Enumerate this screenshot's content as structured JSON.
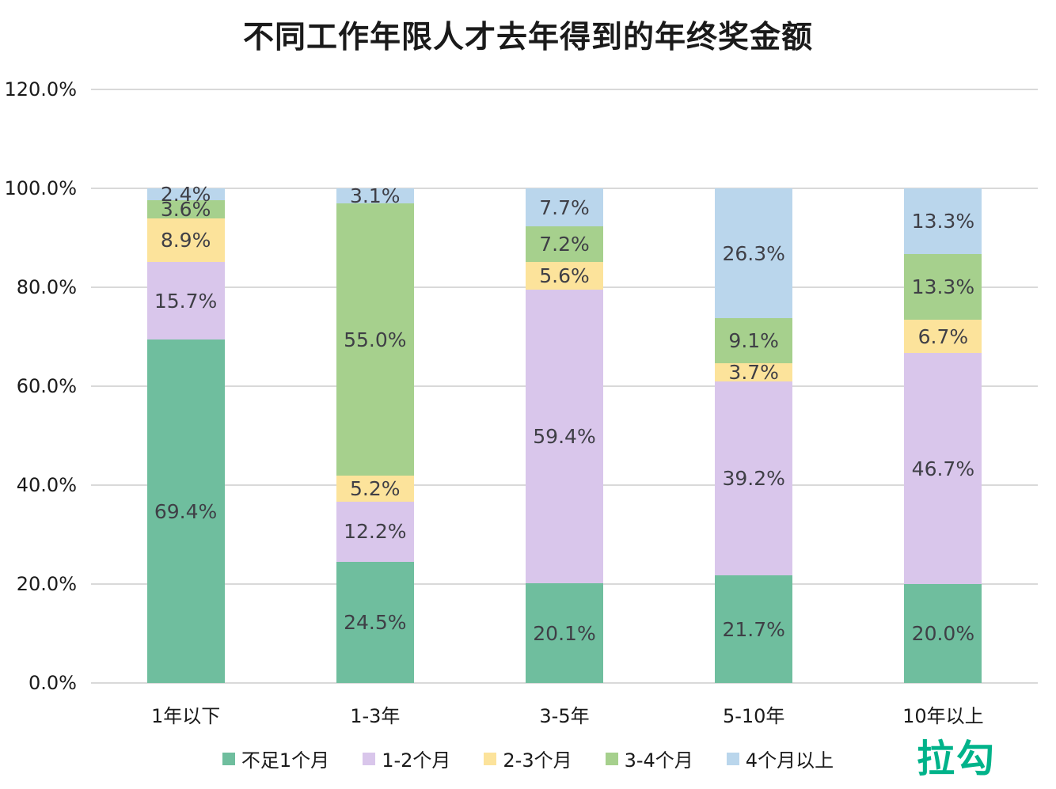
{
  "chart_data": {
    "type": "bar",
    "stacked": true,
    "title": "不同工作年限人才去年得到的年终奖金额",
    "categories": [
      "1年以下",
      "1-3年",
      "3-5年",
      "5-10年",
      "10年以上"
    ],
    "series": [
      {
        "name": "不足1个月",
        "color": "#6FBE9E",
        "values": [
          69.4,
          24.5,
          20.1,
          21.7,
          20.0
        ]
      },
      {
        "name": "1-2个月",
        "color": "#D9C6EB",
        "values": [
          15.7,
          12.2,
          59.4,
          39.2,
          46.7
        ]
      },
      {
        "name": "2-3个月",
        "color": "#FCE39B",
        "values": [
          8.9,
          5.2,
          5.6,
          3.7,
          6.7
        ]
      },
      {
        "name": "3-4个月",
        "color": "#A6D08D",
        "values": [
          3.6,
          55.0,
          7.2,
          9.1,
          13.3
        ]
      },
      {
        "name": "4个月以上",
        "color": "#BAD6EC",
        "values": [
          2.4,
          3.1,
          7.7,
          26.3,
          13.3
        ]
      }
    ],
    "xlabel": "",
    "ylabel": "",
    "ylim": [
      0,
      120
    ],
    "ytick_values": [
      0,
      20,
      40,
      60,
      80,
      100,
      120
    ],
    "ytick_labels": [
      "0.0%",
      "20.0%",
      "40.0%",
      "60.0%",
      "80.0%",
      "100.0%",
      "120.0%"
    ],
    "grid": true,
    "legend_position": "bottom",
    "data_label_format": "one_decimal_percent"
  },
  "colors": {
    "background": "#FFFFFF",
    "gridline": "#D9D9D9",
    "data_label": "#3F3F46",
    "axis_label": "#1A1A1A"
  },
  "logo": {
    "text": "拉勾",
    "color": "#00B38A"
  }
}
